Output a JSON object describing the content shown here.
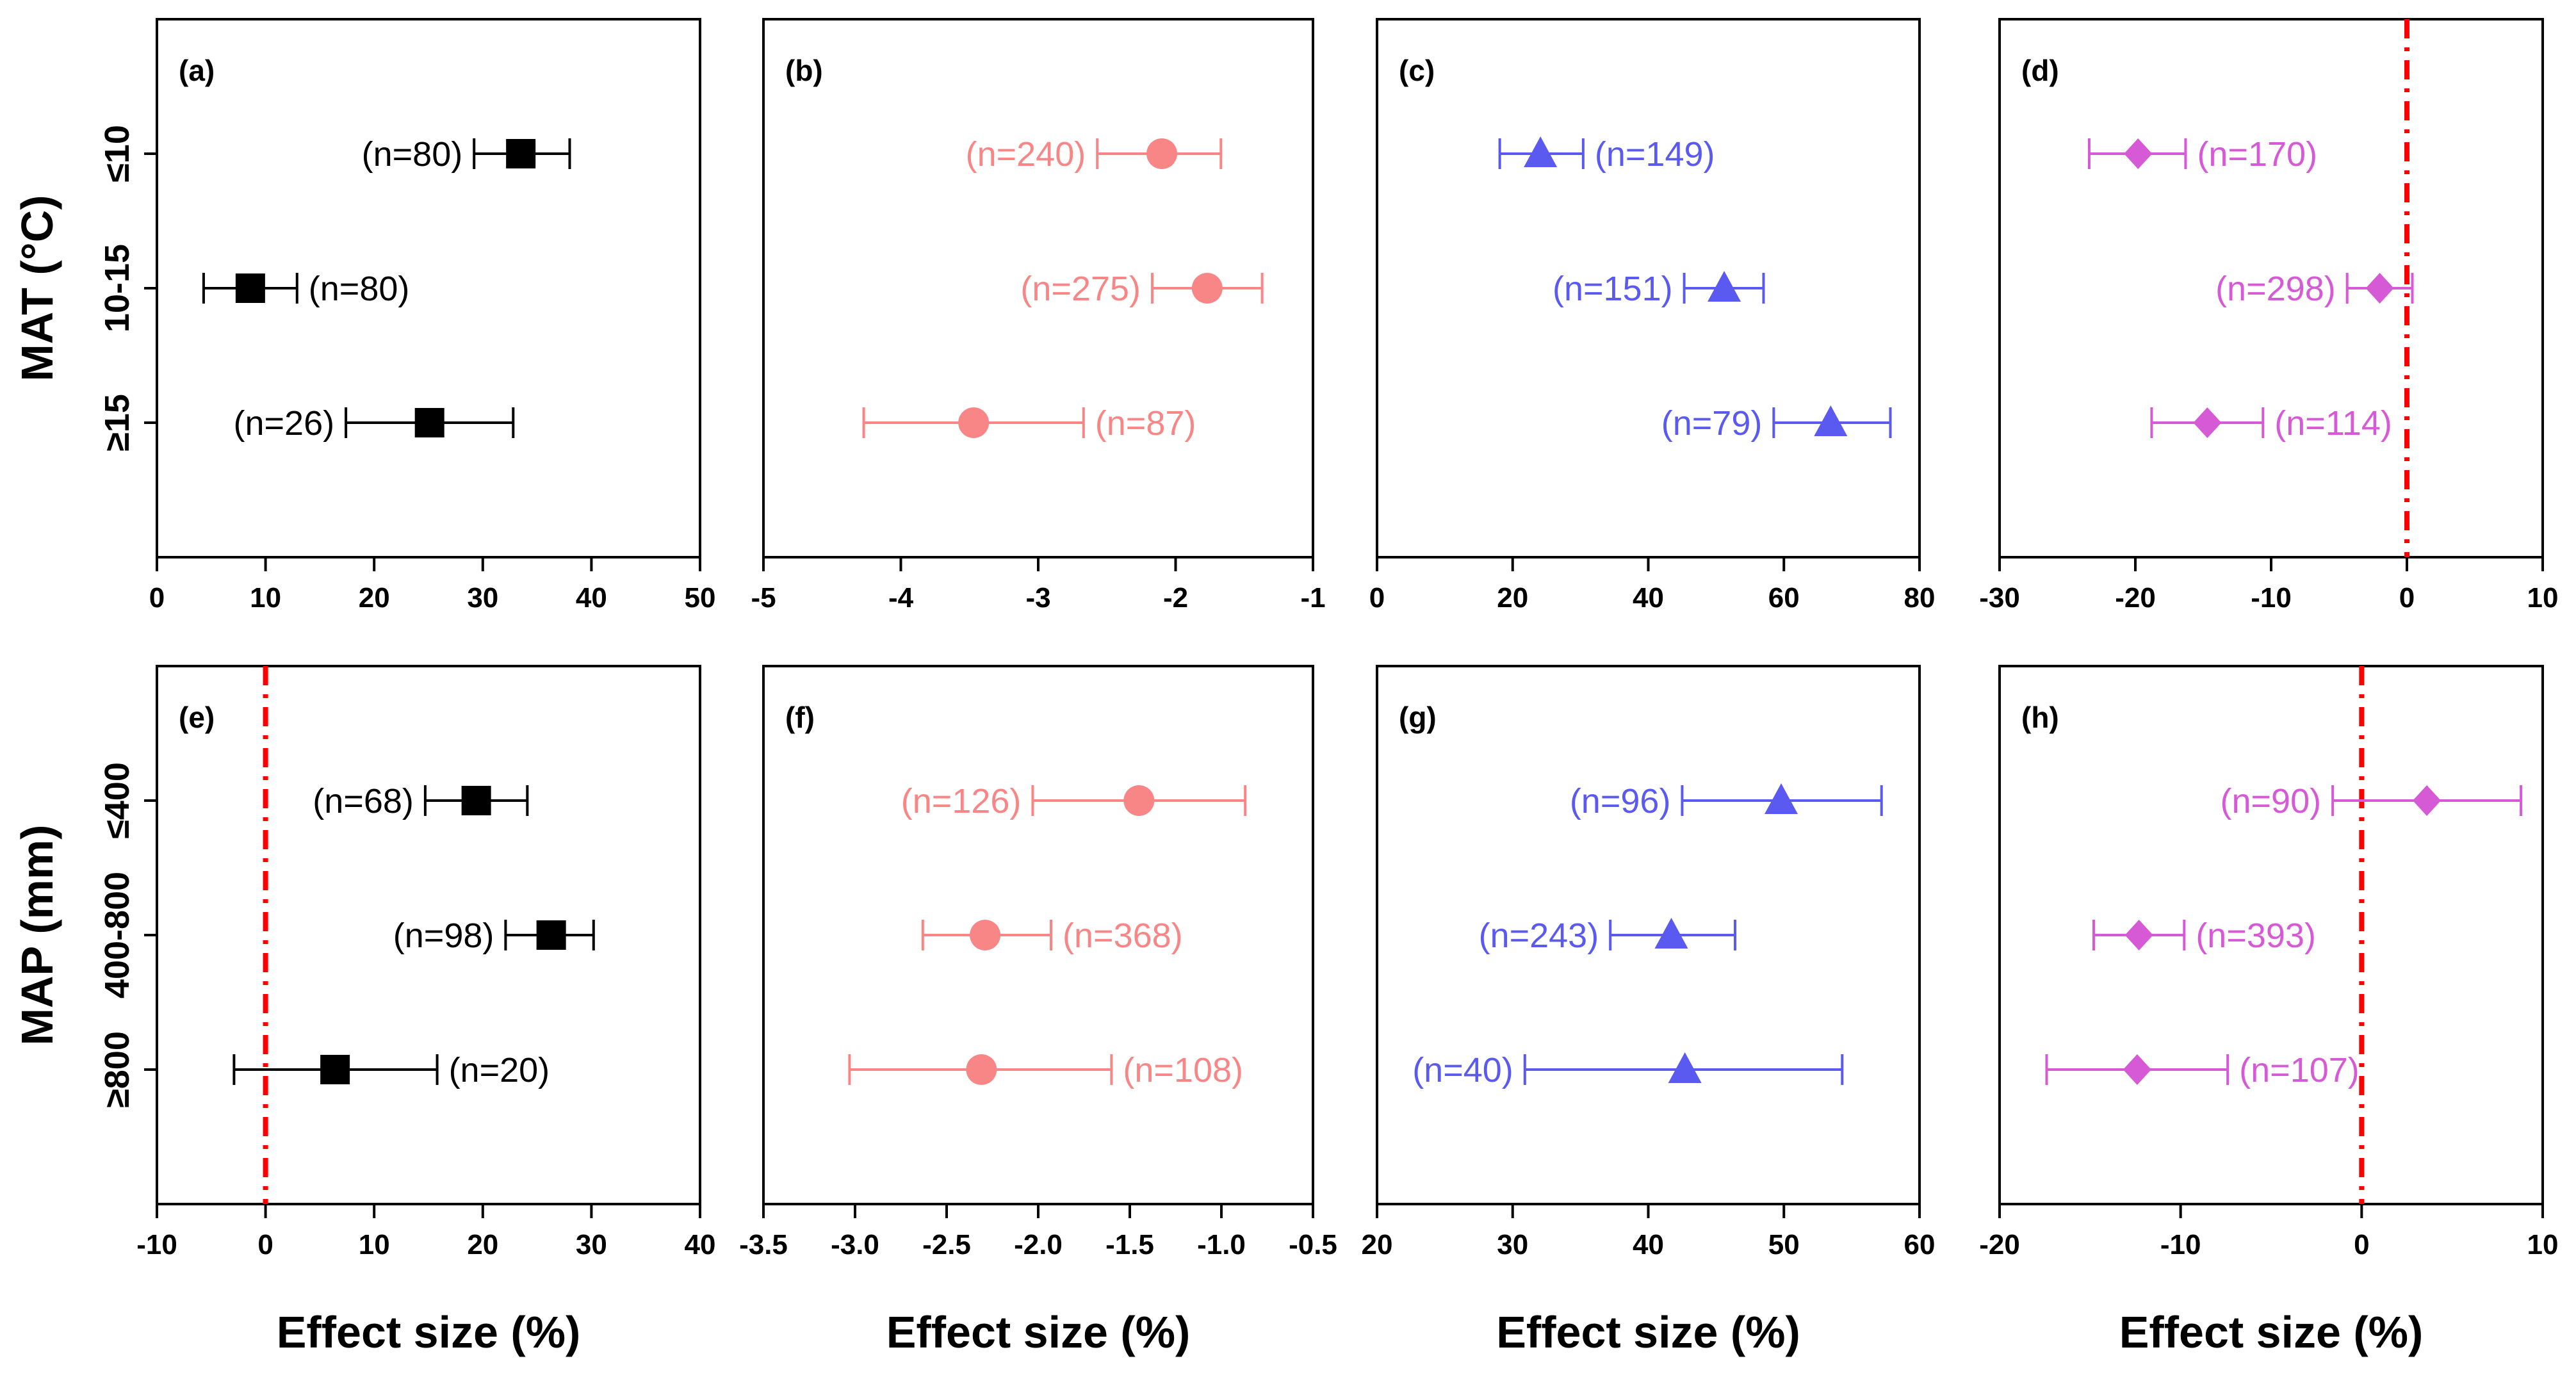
{
  "chart_data": [
    {
      "id": "a",
      "type": "forest",
      "panel_label": "(a)",
      "row": "MAT",
      "color": "#000000",
      "marker": "square",
      "xlim": [
        0,
        50
      ],
      "xticks": [
        "0",
        "10",
        "20",
        "30",
        "40",
        "50"
      ],
      "categories": [
        "≤10",
        "10-15",
        "≥15"
      ],
      "points": [
        {
          "mean": 33.5,
          "low": 29.2,
          "high": 38.0,
          "n_label": "(n=80)",
          "label_side": "left"
        },
        {
          "mean": 8.6,
          "low": 4.3,
          "high": 12.9,
          "n_label": "(n=80)",
          "label_side": "right"
        },
        {
          "mean": 25.1,
          "low": 17.4,
          "high": 32.8,
          "n_label": "(n=26)",
          "label_side": "left"
        }
      ]
    },
    {
      "id": "b",
      "type": "forest",
      "panel_label": "(b)",
      "row": "MAT",
      "color": "#f98686",
      "marker": "circle",
      "xlim": [
        -5,
        -1
      ],
      "xticks": [
        "-5",
        "-4",
        "-3",
        "-2",
        "-1"
      ],
      "categories": [
        "≤10",
        "10-15",
        "≥15"
      ],
      "points": [
        {
          "mean": -2.1,
          "low": -2.57,
          "high": -1.67,
          "n_label": "(n=240)",
          "label_side": "left"
        },
        {
          "mean": -1.77,
          "low": -2.17,
          "high": -1.37,
          "n_label": "(n=275)",
          "label_side": "left"
        },
        {
          "mean": -3.47,
          "low": -4.27,
          "high": -2.67,
          "n_label": "(n=87)",
          "label_side": "right"
        }
      ]
    },
    {
      "id": "c",
      "type": "forest",
      "panel_label": "(c)",
      "row": "MAT",
      "color": "#5a5af0",
      "marker": "triangle",
      "xlim": [
        0,
        80
      ],
      "xticks": [
        "0",
        "20",
        "40",
        "60",
        "80"
      ],
      "categories": [
        "≤10",
        "10-15",
        "≥15"
      ],
      "points": [
        {
          "mean": 24.1,
          "low": 18.1,
          "high": 30.4,
          "n_label": "(n=149)",
          "label_side": "right"
        },
        {
          "mean": 51.2,
          "low": 45.3,
          "high": 57.0,
          "n_label": "(n=151)",
          "label_side": "left"
        },
        {
          "mean": 66.9,
          "low": 58.5,
          "high": 75.7,
          "n_label": "(n=79)",
          "label_side": "left"
        }
      ]
    },
    {
      "id": "d",
      "type": "forest",
      "panel_label": "(d)",
      "row": "MAT",
      "color": "#d65ad6",
      "marker": "diamond",
      "xlim": [
        -30,
        10
      ],
      "xticks": [
        "-30",
        "-20",
        "-10",
        "0",
        "10"
      ],
      "refline": 0,
      "categories": [
        "≤10",
        "10-15",
        "≥15"
      ],
      "points": [
        {
          "mean": -19.8,
          "low": -23.4,
          "high": -16.3,
          "n_label": "(n=170)",
          "label_side": "right"
        },
        {
          "mean": -2.0,
          "low": -4.4,
          "high": 0.4,
          "n_label": "(n=298)",
          "label_side": "left"
        },
        {
          "mean": -14.7,
          "low": -18.8,
          "high": -10.6,
          "n_label": "(n=114)",
          "label_side": "right"
        }
      ]
    },
    {
      "id": "e",
      "type": "forest",
      "panel_label": "(e)",
      "row": "MAP",
      "color": "#000000",
      "marker": "square",
      "xlim": [
        -10,
        40
      ],
      "xticks": [
        "-10",
        "0",
        "10",
        "20",
        "30",
        "40"
      ],
      "refline": 0,
      "categories": [
        "≤400",
        "400-800",
        "≥800"
      ],
      "points": [
        {
          "mean": 19.4,
          "low": 14.7,
          "high": 24.1,
          "n_label": "(n=68)",
          "label_side": "left"
        },
        {
          "mean": 26.3,
          "low": 22.1,
          "high": 30.2,
          "n_label": "(n=98)",
          "label_side": "left"
        },
        {
          "mean": 6.4,
          "low": -2.9,
          "high": 15.8,
          "n_label": "(n=20)",
          "label_side": "right"
        }
      ]
    },
    {
      "id": "f",
      "type": "forest",
      "panel_label": "(f)",
      "row": "MAP",
      "color": "#f98686",
      "marker": "circle",
      "xlim": [
        -3.5,
        -0.5
      ],
      "xticks": [
        "-3.5",
        "-3.0",
        "-2.5",
        "-2.0",
        "-1.5",
        "-1.0",
        "-0.5"
      ],
      "categories": [
        "≤400",
        "400-800",
        "≥800"
      ],
      "points": [
        {
          "mean": -1.45,
          "low": -2.03,
          "high": -0.87,
          "n_label": "(n=126)",
          "label_side": "left"
        },
        {
          "mean": -2.29,
          "low": -2.63,
          "high": -1.93,
          "n_label": "(n=368)",
          "label_side": "right"
        },
        {
          "mean": -2.31,
          "low": -3.03,
          "high": -1.6,
          "n_label": "(n=108)",
          "label_side": "right"
        }
      ]
    },
    {
      "id": "g",
      "type": "forest",
      "panel_label": "(g)",
      "row": "MAP",
      "color": "#5a5af0",
      "marker": "triangle",
      "xlim": [
        20,
        60
      ],
      "xticks": [
        "20",
        "30",
        "40",
        "50",
        "60"
      ],
      "categories": [
        "≤400",
        "400-800",
        "≥800"
      ],
      "points": [
        {
          "mean": 49.8,
          "low": 42.5,
          "high": 57.2,
          "n_label": "(n=96)",
          "label_side": "left"
        },
        {
          "mean": 41.7,
          "low": 37.2,
          "high": 46.4,
          "n_label": "(n=243)",
          "label_side": "left"
        },
        {
          "mean": 42.7,
          "low": 30.9,
          "high": 54.3,
          "n_label": "(n=40)",
          "label_side": "left"
        }
      ]
    },
    {
      "id": "h",
      "type": "forest",
      "panel_label": "(h)",
      "row": "MAP",
      "color": "#d65ad6",
      "marker": "diamond",
      "xlim": [
        -20,
        10
      ],
      "xticks": [
        "-20",
        "-10",
        "0",
        "10"
      ],
      "refline": 0,
      "categories": [
        "≤400",
        "400-800",
        "≥800"
      ],
      "points": [
        {
          "mean": 3.6,
          "low": -1.6,
          "high": 8.8,
          "n_label": "(n=90)",
          "label_side": "left"
        },
        {
          "mean": -12.3,
          "low": -14.8,
          "high": -9.8,
          "n_label": "(n=393)",
          "label_side": "right"
        },
        {
          "mean": -12.4,
          "low": -17.4,
          "high": -7.4,
          "n_label": "(n=107)",
          "label_side": "right"
        }
      ]
    }
  ],
  "row_titles": {
    "top": "MAT (°C)",
    "bottom": "MAP (mm)"
  },
  "xlabel": "Effect size (%)",
  "refline_color": "#ff0000"
}
